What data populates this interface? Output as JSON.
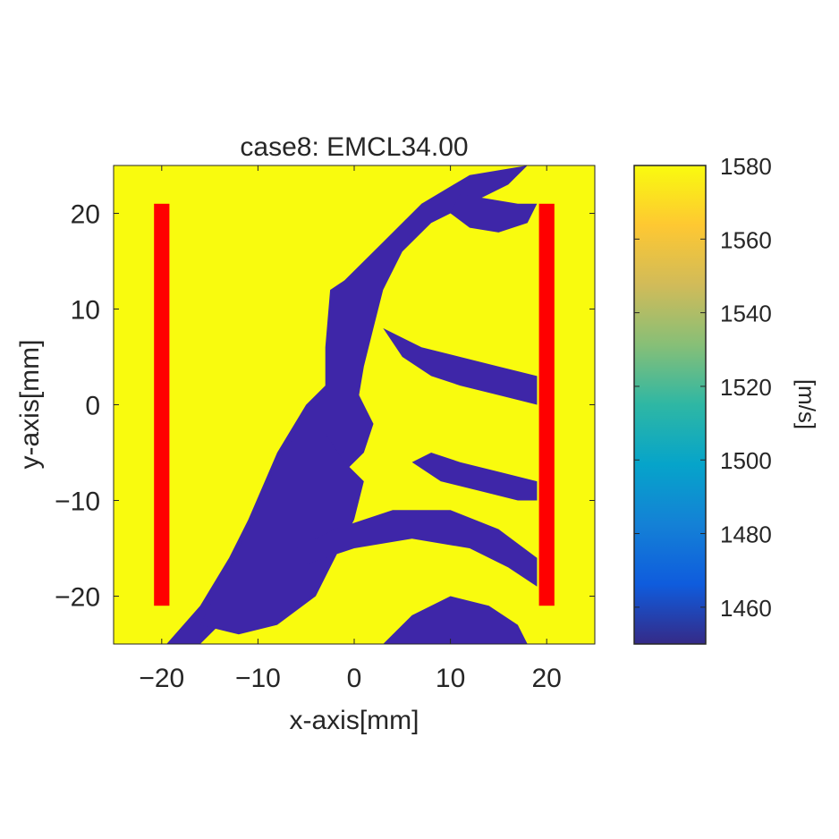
{
  "chart_data": {
    "type": "heatmap",
    "title": "case8: EMCL34.00",
    "xlabel": "x-axis[mm]",
    "ylabel": "y-axis[mm]",
    "xlim": [
      -25,
      25
    ],
    "ylim": [
      -25,
      25
    ],
    "xticks": [
      -20,
      -10,
      0,
      10,
      20
    ],
    "yticks": [
      20,
      10,
      0,
      -10,
      -20
    ],
    "xtick_labels": [
      "−20",
      "−10",
      "0",
      "10",
      "20"
    ],
    "ytick_labels": [
      "20",
      "10",
      "0",
      "−10",
      "−20"
    ],
    "colorbar": {
      "label": "[m/s]",
      "range": [
        1450,
        1580
      ],
      "ticks": [
        1580,
        1560,
        1540,
        1520,
        1500,
        1480,
        1460
      ],
      "colormap": "parula",
      "colormap_stops": [
        "#352a87",
        "#0f5cdd",
        "#1481d6",
        "#06a4ca",
        "#2eb7a4",
        "#87bf77",
        "#d1bb59",
        "#fec832",
        "#f9fb0e"
      ]
    },
    "background_value": 1580,
    "low_value": 1450,
    "low_value_regions": [
      {
        "name": "main-diagonal-band",
        "value": 1450,
        "polygon": [
          [
            -19.5,
            -25
          ],
          [
            -16,
            -21
          ],
          [
            -13,
            -16
          ],
          [
            -11,
            -12
          ],
          [
            -8,
            -5
          ],
          [
            -5,
            0
          ],
          [
            -3,
            2
          ],
          [
            -3,
            6
          ],
          [
            -2.5,
            12
          ],
          [
            -1,
            13
          ],
          [
            3,
            17
          ],
          [
            7,
            21
          ],
          [
            12,
            24
          ],
          [
            18,
            25
          ],
          [
            16,
            23
          ],
          [
            12,
            21
          ],
          [
            8,
            19
          ],
          [
            5,
            16
          ],
          [
            3,
            12
          ],
          [
            2,
            8
          ],
          [
            1,
            4
          ],
          [
            0.5,
            1
          ],
          [
            2,
            -2
          ],
          [
            1,
            -5
          ],
          [
            -1,
            -7
          ],
          [
            -3,
            -10
          ],
          [
            -5,
            -14
          ],
          [
            -8,
            -18
          ],
          [
            -12,
            -21
          ],
          [
            -15,
            -24
          ],
          [
            -16,
            -25
          ]
        ]
      },
      {
        "name": "left-lower-wedge",
        "value": 1450,
        "polygon": [
          [
            -16,
            -23
          ],
          [
            -13,
            -17
          ],
          [
            -11,
            -13
          ],
          [
            -8,
            -6
          ],
          [
            -6,
            -3
          ],
          [
            -3,
            -3
          ],
          [
            -1,
            -6
          ],
          [
            1,
            -8
          ],
          [
            0,
            -12
          ],
          [
            -2,
            -16
          ],
          [
            -4,
            -20
          ],
          [
            -8,
            -23
          ],
          [
            -12,
            -24
          ]
        ]
      },
      {
        "name": "lower-right-strip",
        "value": 1450,
        "polygon": [
          [
            -6,
            -17
          ],
          [
            0,
            -15
          ],
          [
            6,
            -14
          ],
          [
            12,
            -15
          ],
          [
            16,
            -17
          ],
          [
            19,
            -19
          ],
          [
            19,
            -16
          ],
          [
            15,
            -13
          ],
          [
            10,
            -11
          ],
          [
            4,
            -11
          ],
          [
            -2,
            -13
          ],
          [
            -6,
            -15
          ]
        ]
      },
      {
        "name": "right-middle-streak",
        "value": 1450,
        "polygon": [
          [
            3,
            8
          ],
          [
            7,
            6
          ],
          [
            11,
            5
          ],
          [
            15,
            4
          ],
          [
            19,
            3
          ],
          [
            19,
            0
          ],
          [
            15,
            1
          ],
          [
            11,
            2
          ],
          [
            8,
            3
          ],
          [
            5,
            5
          ]
        ]
      },
      {
        "name": "right-lower-streak",
        "value": 1450,
        "polygon": [
          [
            6,
            -6
          ],
          [
            9,
            -8
          ],
          [
            13,
            -9
          ],
          [
            17,
            -10
          ],
          [
            19,
            -10
          ],
          [
            19,
            -8
          ],
          [
            15,
            -7
          ],
          [
            11,
            -6
          ],
          [
            8,
            -5
          ]
        ]
      },
      {
        "name": "top-right-patch",
        "value": 1450,
        "polygon": [
          [
            11,
            22
          ],
          [
            14,
            21.5
          ],
          [
            17,
            21
          ],
          [
            19,
            21
          ],
          [
            18,
            19
          ],
          [
            15,
            18
          ],
          [
            12,
            18.5
          ],
          [
            10,
            20
          ]
        ]
      },
      {
        "name": "bottom-mottle",
        "value": 1450,
        "polygon": [
          [
            3,
            -25
          ],
          [
            6,
            -22
          ],
          [
            10,
            -20
          ],
          [
            14,
            -21
          ],
          [
            17,
            -23
          ],
          [
            18,
            -25
          ]
        ]
      }
    ],
    "transducers": [
      {
        "name": "left-transducer",
        "x": [
          -20.8,
          -19.2
        ],
        "y": [
          -21,
          21
        ],
        "color": "#ff0000"
      },
      {
        "name": "right-transducer",
        "x": [
          19.2,
          20.8
        ],
        "y": [
          -21,
          21
        ],
        "color": "#ff0000"
      }
    ]
  },
  "colors": {
    "high": "#f9fb0e",
    "low": "#3e26a8",
    "transducer": "#ff0000",
    "axis": "#262626"
  }
}
